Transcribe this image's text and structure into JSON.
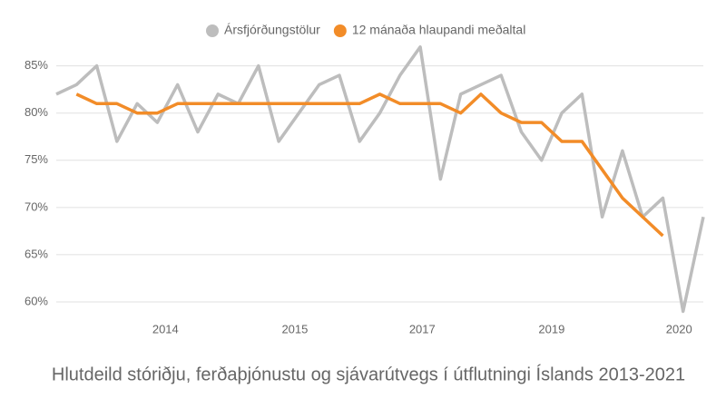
{
  "chart_data": {
    "type": "line",
    "title": "Hlutdeild stóriðju, ferðaþjónustu og sjávarútvegs í útflutningi Íslands 2013-2021",
    "x": [
      0,
      1,
      2,
      3,
      4,
      5,
      6,
      7,
      8,
      9,
      10,
      11,
      12,
      13,
      14,
      15,
      16,
      17,
      18,
      19,
      20,
      21,
      22,
      23,
      24,
      25,
      26,
      27,
      28,
      29,
      30,
      31,
      32
    ],
    "xlim": [
      0,
      32
    ],
    "xticks": [
      {
        "value": 5.4,
        "label": "2014"
      },
      {
        "value": 11.8,
        "label": "2015"
      },
      {
        "value": 18.1,
        "label": "2017"
      },
      {
        "value": 24.5,
        "label": "2019"
      },
      {
        "value": 30.8,
        "label": "2020"
      }
    ],
    "ylim": [
      58,
      87
    ],
    "yticks": [
      {
        "value": 60,
        "label": "60%"
      },
      {
        "value": 65,
        "label": "65%"
      },
      {
        "value": 70,
        "label": "70%"
      },
      {
        "value": 75,
        "label": "75%"
      },
      {
        "value": 80,
        "label": "80%"
      },
      {
        "value": 85,
        "label": "85%"
      }
    ],
    "grid": true,
    "series": [
      {
        "name": "Ársfjórðungstölur",
        "color": "#bdbdbd",
        "values": [
          82,
          83,
          85,
          77,
          81,
          79,
          83,
          78,
          82,
          81,
          85,
          77,
          80,
          83,
          84,
          77,
          80,
          84,
          87,
          73,
          82,
          83,
          84,
          78,
          75,
          80,
          82,
          69,
          76,
          69,
          71,
          59,
          69
        ]
      },
      {
        "name": "12 mánaða hlaupandi meðaltal",
        "color": "#f28c28",
        "values": [
          null,
          82,
          81,
          81,
          80,
          80,
          81,
          81,
          81,
          81,
          81,
          81,
          81,
          81,
          81,
          81,
          82,
          81,
          81,
          81,
          80,
          82,
          80,
          79,
          79,
          77,
          77,
          74,
          71,
          69,
          67,
          null,
          null
        ]
      }
    ]
  }
}
